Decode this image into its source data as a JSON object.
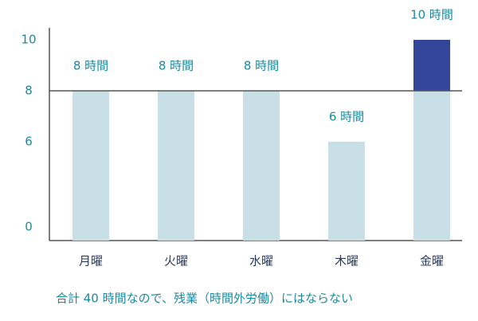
{
  "chart_data": {
    "type": "bar",
    "categories": [
      "月曜",
      "火曜",
      "水曜",
      "木曜",
      "金曜"
    ],
    "values": [
      8,
      8,
      8,
      6,
      10
    ],
    "value_labels": [
      "8 時間",
      "8 時間",
      "8 時間",
      "6 時間",
      "10 時間"
    ],
    "color": "#c8dfe7",
    "over_color": "#34469a",
    "threshold": 8,
    "ylim": [
      0,
      10
    ],
    "yticks": [
      0,
      6,
      8,
      10
    ],
    "caption": "合計 40 時間なので、残業（時間外労働）にはならない"
  }
}
